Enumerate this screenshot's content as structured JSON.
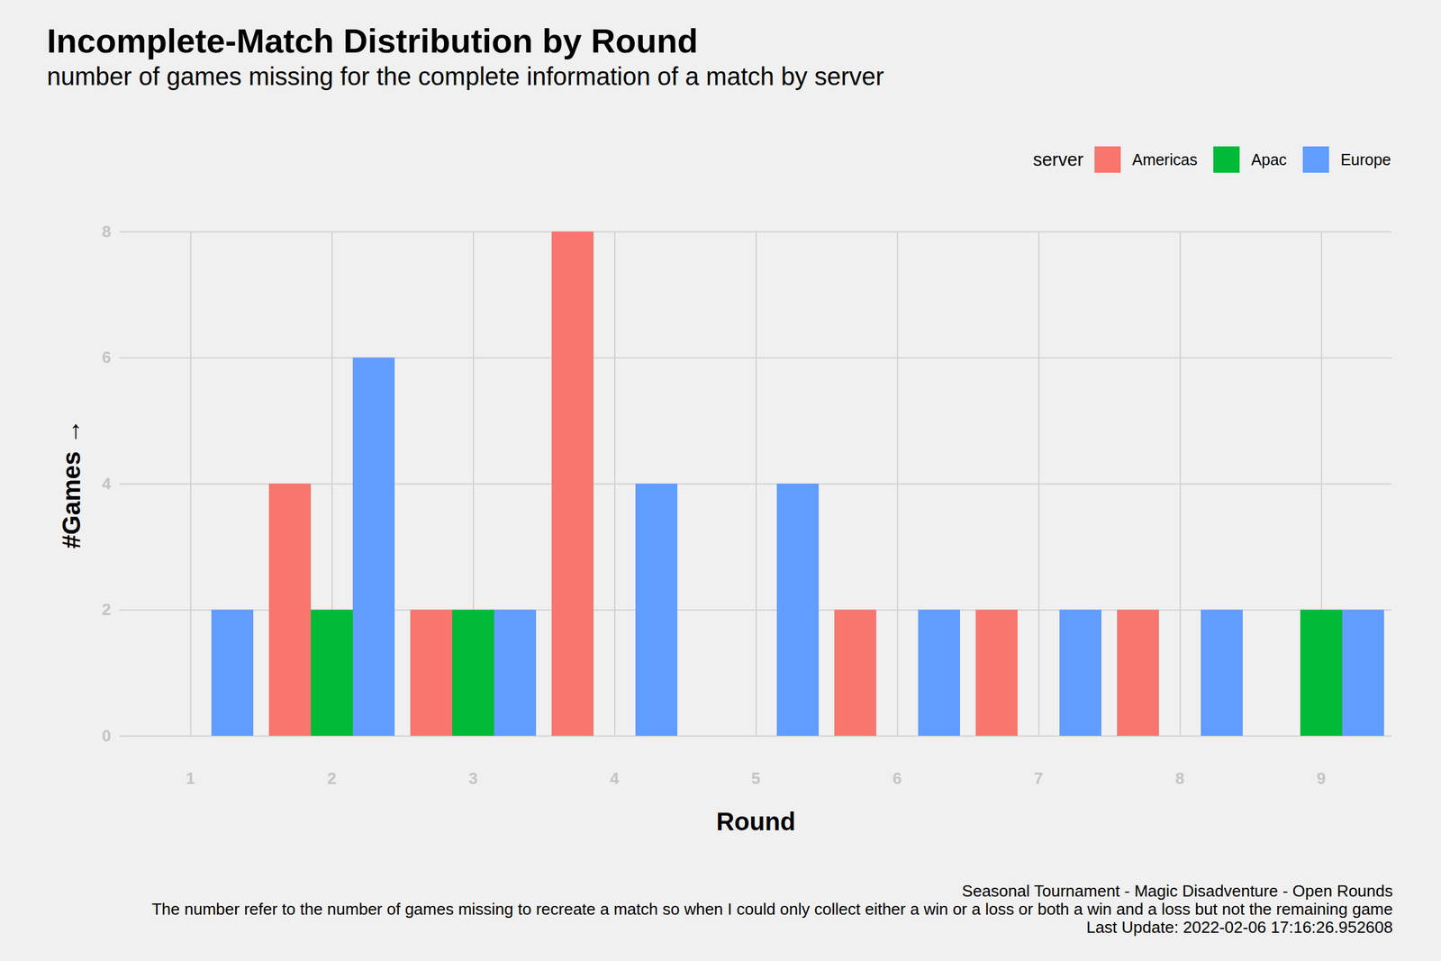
{
  "chart_data": {
    "type": "bar",
    "title": "Incomplete-Match Distribution by Round",
    "subtitle": "number of games missing for the complete information of a match by server",
    "x_label": "Round",
    "y_label": "#Games",
    "legend_title": "server",
    "legend": "top-right",
    "grid": true,
    "categories": [
      1,
      2,
      3,
      4,
      5,
      6,
      7,
      8,
      9
    ],
    "series": [
      {
        "name": "Americas",
        "color": "#F8766D",
        "values": [
          null,
          4,
          2,
          8,
          null,
          2,
          2,
          2,
          null
        ]
      },
      {
        "name": "Apac",
        "color": "#00BA38",
        "values": [
          null,
          2,
          2,
          null,
          null,
          null,
          null,
          null,
          2
        ]
      },
      {
        "name": "Europe",
        "color": "#619CFF",
        "values": [
          2,
          6,
          2,
          4,
          4,
          2,
          2,
          2,
          2
        ]
      }
    ],
    "ylim": [
      0,
      8
    ],
    "yticks": [
      0,
      2,
      4,
      6,
      8
    ],
    "caption": [
      "Seasonal Tournament - Magic Disadventure - Open Rounds",
      "The number refer to the number of games missing to recreate a match so when I could only collect either a win or a loss or both a win and a loss but not the remaining game",
      "Last Update: 2022-02-06 17:16:26.952608"
    ]
  }
}
